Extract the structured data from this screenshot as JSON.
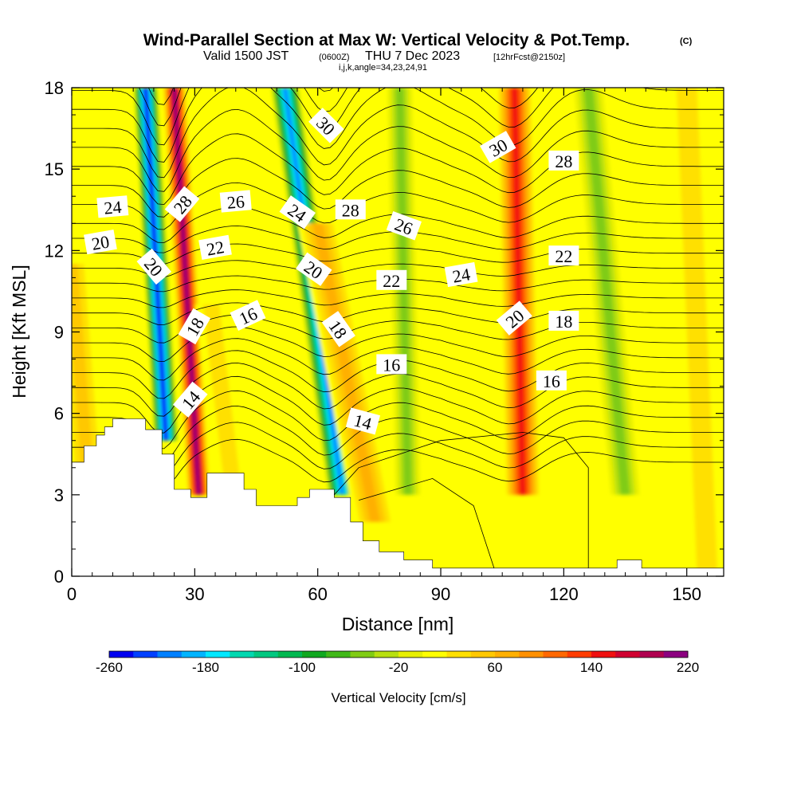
{
  "header": {
    "title": "Wind-Parallel Section at Max W: Vertical Velocity & Pot.Temp.",
    "title_mark": "(C)",
    "valid_prefix": "Valid 1500 JST",
    "valid_utc": "(0600Z)",
    "valid_date": "THU 7 Dec 2023",
    "forecast_info": "[12hrFcst@2150z]",
    "indices": "i,j,k,angle=34,23,24,91"
  },
  "chart_data": {
    "type": "heatmap",
    "xlabel": "Distance [nm]",
    "ylabel": "Height [Kft MSL]",
    "xlim": [
      0,
      159
    ],
    "ylim": [
      0,
      18
    ],
    "x_ticks": [
      0,
      30,
      60,
      90,
      120,
      150
    ],
    "y_ticks": [
      0,
      3,
      6,
      9,
      12,
      15,
      18
    ],
    "fill_variable": "Vertical Velocity [cm/s]",
    "contour_variable": "Pot.Temp.",
    "colorbar": {
      "label": "Vertical Velocity [cm/s]",
      "tick_labels": [
        "-260",
        "-180",
        "-100",
        "-20",
        "60",
        "140",
        "220"
      ],
      "levels": [
        -260,
        -240,
        -220,
        -200,
        -180,
        -160,
        -140,
        -120,
        -100,
        -80,
        -60,
        -40,
        -20,
        0,
        20,
        40,
        60,
        80,
        100,
        120,
        140,
        160,
        180,
        200,
        220
      ],
      "colors": [
        "#0000f0",
        "#0040ff",
        "#0080ff",
        "#00b4ff",
        "#00e8ff",
        "#00d8b0",
        "#00c880",
        "#00b850",
        "#10a820",
        "#40b818",
        "#80cc14",
        "#b8e010",
        "#e8f000",
        "#ffff00",
        "#ffe000",
        "#ffc800",
        "#ffb000",
        "#ff9000",
        "#ff6800",
        "#ff3c00",
        "#f01010",
        "#d00030",
        "#b00050",
        "#8c0080",
        "#6a00a0"
      ]
    },
    "w_field": {
      "background_value": 0,
      "features": [
        {
          "x_base": 4,
          "x_top": 0,
          "ymin": 3.6,
          "ymax": 11.5,
          "width": 4.5,
          "value": 55
        },
        {
          "x_base": 23,
          "x_top": 18,
          "ymin": 5.0,
          "ymax": 18.0,
          "width": 3.0,
          "value": -255
        },
        {
          "x_base": 31,
          "x_top": 25,
          "ymin": 3.0,
          "ymax": 18.0,
          "width": 3.0,
          "value": 215
        },
        {
          "x_base": 39,
          "x_top": 34,
          "ymin": 3.6,
          "ymax": 10.0,
          "width": 4.0,
          "value": 30
        },
        {
          "x_base": 66,
          "x_top": 52,
          "ymin": 3.0,
          "ymax": 18.0,
          "width": 3.5,
          "value": -225
        },
        {
          "x_base": 74,
          "x_top": 60,
          "ymin": 2.0,
          "ymax": 13.0,
          "width": 5.0,
          "value": 70
        },
        {
          "x_base": 82,
          "x_top": 80,
          "ymin": 3.0,
          "ymax": 18.0,
          "width": 3.0,
          "value": -50
        },
        {
          "x_base": 110,
          "x_top": 108,
          "ymin": 3.0,
          "ymax": 18.0,
          "width": 4.5,
          "value": 150
        },
        {
          "x_base": 135,
          "x_top": 126,
          "ymin": 3.0,
          "ymax": 18.0,
          "width": 3.5,
          "value": -60
        },
        {
          "x_base": 155,
          "x_top": 150,
          "ymin": 0.0,
          "ymax": 18.0,
          "width": 5.0,
          "value": 40
        }
      ]
    },
    "terrain": [
      [
        0,
        4.2
      ],
      [
        3,
        4.2
      ],
      [
        3,
        4.8
      ],
      [
        6,
        4.8
      ],
      [
        6,
        5.2
      ],
      [
        8,
        5.2
      ],
      [
        8,
        5.5
      ],
      [
        10,
        5.5
      ],
      [
        10,
        5.8
      ],
      [
        14,
        5.8
      ],
      [
        14,
        5.8
      ],
      [
        18,
        5.8
      ],
      [
        18,
        5.4
      ],
      [
        22,
        5.4
      ],
      [
        22,
        4.5
      ],
      [
        25,
        4.5
      ],
      [
        25,
        3.2
      ],
      [
        29,
        3.2
      ],
      [
        29,
        2.9
      ],
      [
        33,
        2.9
      ],
      [
        33,
        3.8
      ],
      [
        39,
        3.8
      ],
      [
        39,
        3.8
      ],
      [
        42,
        3.8
      ],
      [
        42,
        3.2
      ],
      [
        45,
        3.2
      ],
      [
        45,
        2.6
      ],
      [
        55,
        2.6
      ],
      [
        55,
        2.9
      ],
      [
        58,
        2.9
      ],
      [
        58,
        3.2
      ],
      [
        64,
        3.2
      ],
      [
        64,
        2.9
      ],
      [
        68,
        2.9
      ],
      [
        68,
        2.0
      ],
      [
        71,
        2.0
      ],
      [
        71,
        1.3
      ],
      [
        75,
        1.3
      ],
      [
        75,
        0.9
      ],
      [
        81,
        0.9
      ],
      [
        81,
        0.6
      ],
      [
        88,
        0.6
      ],
      [
        88,
        0.3
      ],
      [
        92,
        0.3
      ],
      [
        92,
        0.3
      ],
      [
        133,
        0.3
      ],
      [
        133,
        0.6
      ],
      [
        139,
        0.6
      ],
      [
        139,
        0.3
      ],
      [
        159,
        0.3
      ]
    ],
    "contour_labels": [
      {
        "text": "30",
        "x": 62,
        "y": 16.6,
        "angle": 45
      },
      {
        "text": "30",
        "x": 104,
        "y": 15.8,
        "angle": -30
      },
      {
        "text": "28",
        "x": 27,
        "y": 13.7,
        "angle": -50
      },
      {
        "text": "28",
        "x": 68,
        "y": 13.5,
        "angle": 0
      },
      {
        "text": "28",
        "x": 120,
        "y": 15.3,
        "angle": 0
      },
      {
        "text": "26",
        "x": 40,
        "y": 13.8,
        "angle": -5
      },
      {
        "text": "26",
        "x": 81,
        "y": 12.9,
        "angle": 20
      },
      {
        "text": "24",
        "x": 10,
        "y": 13.6,
        "angle": -5
      },
      {
        "text": "24",
        "x": 55,
        "y": 13.4,
        "angle": 35
      },
      {
        "text": "24",
        "x": 95,
        "y": 11.1,
        "angle": -10
      },
      {
        "text": "22",
        "x": 35,
        "y": 12.1,
        "angle": -10
      },
      {
        "text": "22",
        "x": 78,
        "y": 10.9,
        "angle": 0
      },
      {
        "text": "22",
        "x": 120,
        "y": 11.8,
        "angle": 0
      },
      {
        "text": "20",
        "x": 7,
        "y": 12.3,
        "angle": -10
      },
      {
        "text": "20",
        "x": 20,
        "y": 11.4,
        "angle": 50
      },
      {
        "text": "20",
        "x": 59,
        "y": 11.3,
        "angle": 35
      },
      {
        "text": "20",
        "x": 108,
        "y": 9.5,
        "angle": -40
      },
      {
        "text": "18",
        "x": 30,
        "y": 9.2,
        "angle": -60
      },
      {
        "text": "18",
        "x": 65,
        "y": 9.1,
        "angle": 55
      },
      {
        "text": "18",
        "x": 120,
        "y": 9.4,
        "angle": 0
      },
      {
        "text": "16",
        "x": 43,
        "y": 9.6,
        "angle": -25
      },
      {
        "text": "16",
        "x": 78,
        "y": 7.8,
        "angle": 0
      },
      {
        "text": "16",
        "x": 117,
        "y": 7.2,
        "angle": 0
      },
      {
        "text": "14",
        "x": 29,
        "y": 6.5,
        "angle": -50
      },
      {
        "text": "14",
        "x": 71,
        "y": 5.7,
        "angle": 15
      }
    ]
  }
}
